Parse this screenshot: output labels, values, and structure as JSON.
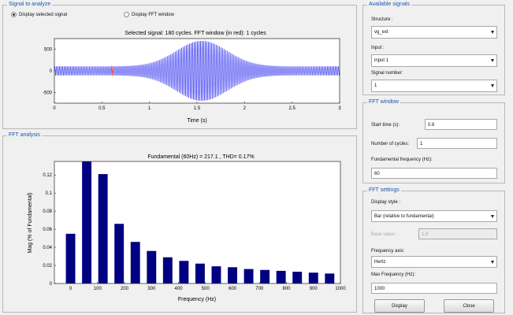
{
  "signal_panel": {
    "title": "Signal to analyze",
    "radio_selected_label": "Display selected signal",
    "radio_fft_label": "Display FFT window",
    "plot_title": "Selected signal: 180 cycles. FFT window (in red): 1 cycles",
    "xlabel": "Time (s)",
    "x_ticks": [
      "0",
      "0.5",
      "1",
      "1.5",
      "2",
      "2.5",
      "3"
    ],
    "y_ticks": [
      "500",
      "0",
      "-500"
    ],
    "colors": {
      "signal": "#2020f0",
      "window": "#ff4040"
    }
  },
  "fft_panel": {
    "title": "FFT analysis"
  },
  "available_signals": {
    "title": "Available signals",
    "structure_label": "Structure :",
    "structure_value": "vg_ext",
    "input_label": "Input :",
    "input_value": "input 1",
    "signal_number_label": "Signal number:",
    "signal_number_value": "1"
  },
  "fft_window": {
    "title": "FFT window",
    "start_time_label": "Start time (s):",
    "start_time_value": "0.6",
    "cycles_label": "Number of cycles:",
    "cycles_value": "1",
    "fund_freq_label": "Fundamental frequency (Hz):",
    "fund_freq_value": "60"
  },
  "fft_settings": {
    "title": "FFT settings",
    "display_style_label": "Display style :",
    "display_style_value": "Bar (relative to fundamental)",
    "base_value_label": "Base value :",
    "base_value_value": "1.0",
    "freq_axis_label": "Frequency axis:",
    "freq_axis_value": "Hertz",
    "max_freq_label": "Max Frequency (Hz):",
    "max_freq_value": "1000",
    "display_button": "Display",
    "close_button": "Close"
  },
  "chart_data": {
    "type": "bar",
    "title": "Fundamental (60Hz) = 217.1 , THD= 0.17%",
    "xlabel": "Frequency (Hz)",
    "ylabel": "Mag (% of Fundamental)",
    "x": [
      0,
      60,
      120,
      180,
      240,
      300,
      360,
      420,
      480,
      540,
      600,
      660,
      720,
      780,
      840,
      900,
      960
    ],
    "values": [
      0.055,
      0.135,
      0.121,
      0.066,
      0.046,
      0.036,
      0.029,
      0.025,
      0.022,
      0.019,
      0.018,
      0.016,
      0.015,
      0.014,
      0.013,
      0.012,
      0.011
    ],
    "xlim": [
      -60,
      1000
    ],
    "ylim": [
      0,
      0.135
    ],
    "x_ticks": [
      0,
      100,
      200,
      300,
      400,
      500,
      600,
      700,
      800,
      900,
      1000
    ],
    "y_ticks": [
      0,
      0.02,
      0.04,
      0.06,
      0.08,
      0.1,
      0.12
    ],
    "bar_color": "#000080",
    "grid": false
  }
}
